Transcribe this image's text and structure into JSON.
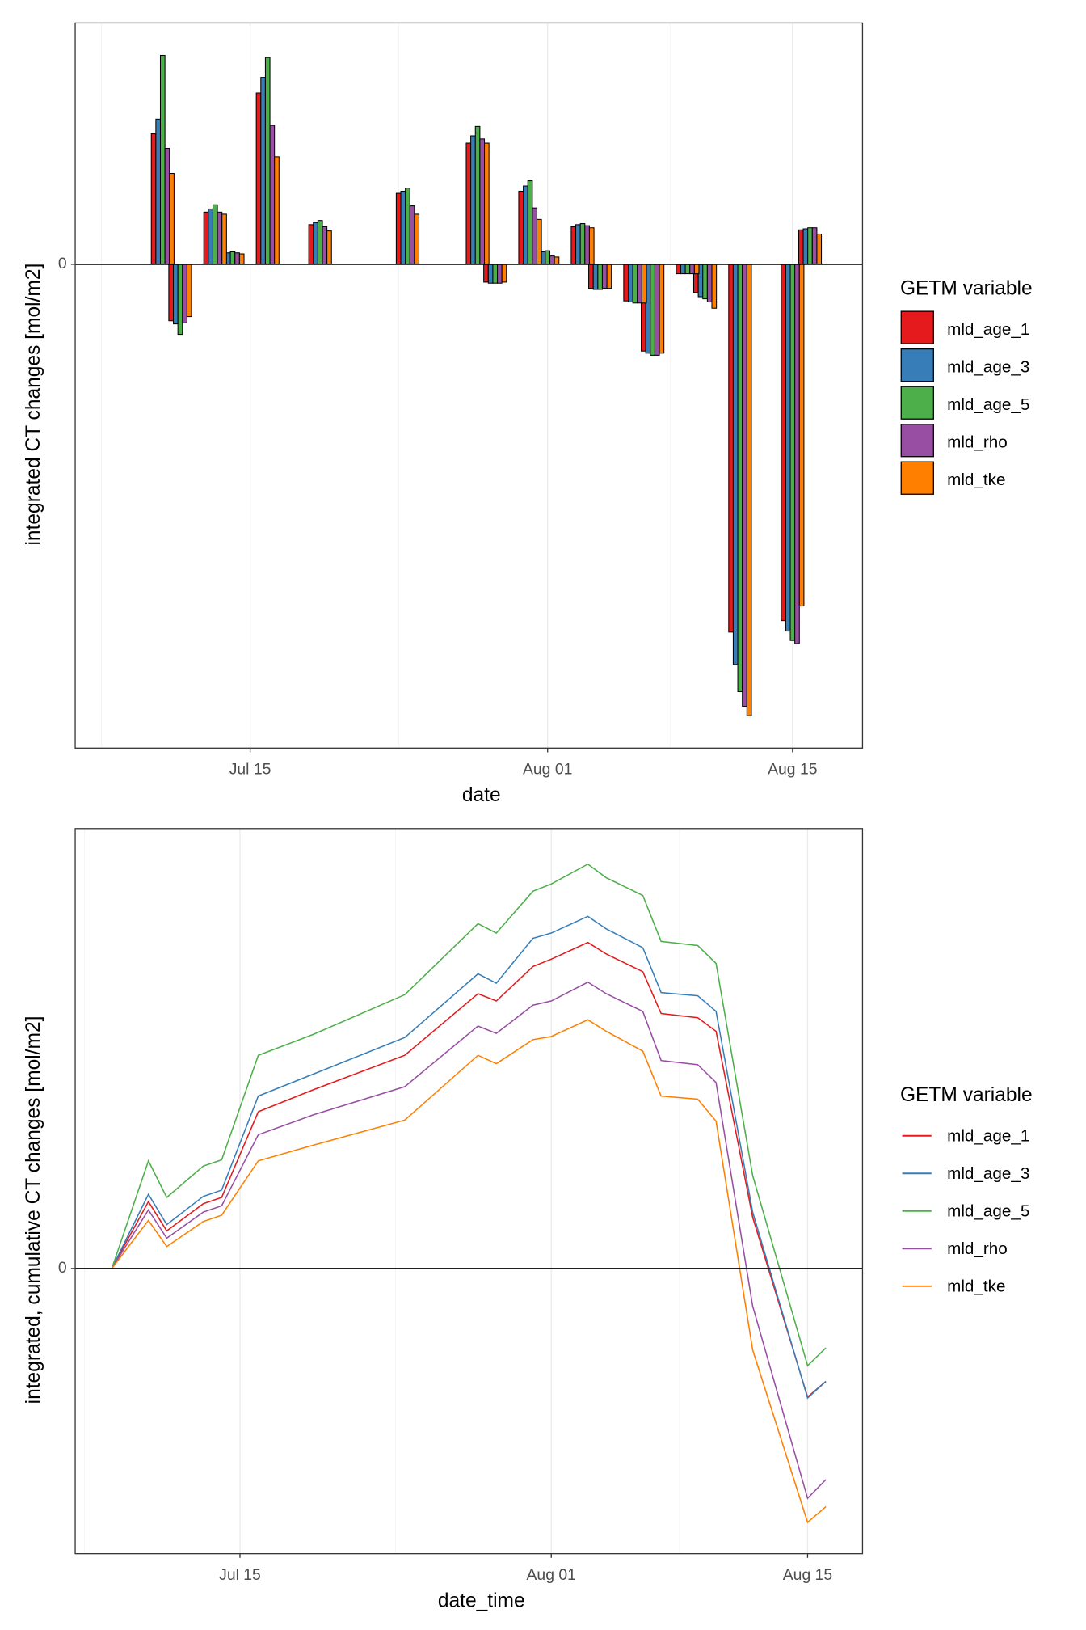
{
  "chart_data": [
    {
      "type": "bar",
      "xlabel": "date",
      "ylabel": "integrated CT changes [mol/m2]",
      "legend_title": "GETM variable",
      "legend": "right",
      "grid": true,
      "zero_line": true,
      "x": [
        "Jul 10",
        "Jul 11",
        "Jul 13",
        "Jul 14",
        "Jul 16",
        "Jul 19",
        "Jul 24",
        "Jul 28",
        "Jul 29",
        "Jul 31",
        "Aug 01",
        "Aug 03",
        "Aug 04",
        "Aug 06",
        "Aug 07",
        "Aug 09",
        "Aug 10",
        "Aug 12",
        "Aug 15",
        "Aug 16"
      ],
      "xlim": [
        "Jul 05",
        "Aug 19"
      ],
      "xticks": [
        "Jul 15",
        "Aug 01",
        "Aug 15"
      ],
      "ylim": [
        -4.63,
        2.31
      ],
      "yticks": [
        0
      ],
      "series": [
        {
          "name": "mld_age_1",
          "color": "#e41a1c",
          "values": [
            1.25,
            -0.54,
            0.5,
            0.11,
            1.64,
            0.38,
            0.68,
            1.16,
            -0.17,
            0.7,
            0.11,
            0.36,
            -0.23,
            -0.35,
            -0.83,
            -0.09,
            -0.27,
            -3.52,
            -3.41,
            0.33
          ]
        },
        {
          "name": "mld_age_3",
          "color": "#377eb8",
          "values": [
            1.39,
            -0.57,
            0.53,
            0.11,
            1.79,
            0.4,
            0.7,
            1.23,
            -0.18,
            0.75,
            0.12,
            0.38,
            -0.24,
            -0.36,
            -0.85,
            -0.09,
            -0.31,
            -3.83,
            -3.51,
            0.34
          ]
        },
        {
          "name": "mld_age_5",
          "color": "#4daf4a",
          "values": [
            2.0,
            -0.67,
            0.57,
            0.12,
            1.98,
            0.42,
            0.73,
            1.32,
            -0.18,
            0.8,
            0.13,
            0.39,
            -0.24,
            -0.37,
            -0.87,
            -0.09,
            -0.33,
            -4.09,
            -3.6,
            0.35
          ]
        },
        {
          "name": "mld_rho",
          "color": "#984ea3",
          "values": [
            1.11,
            -0.56,
            0.5,
            0.11,
            1.33,
            0.36,
            0.56,
            1.2,
            -0.18,
            0.54,
            0.08,
            0.37,
            -0.23,
            -0.37,
            -0.87,
            -0.09,
            -0.36,
            -4.23,
            -3.63,
            0.35
          ]
        },
        {
          "name": "mld_tke",
          "color": "#ff7f00",
          "values": [
            0.87,
            -0.5,
            0.48,
            0.1,
            1.03,
            0.32,
            0.48,
            1.16,
            -0.17,
            0.43,
            0.07,
            0.35,
            -0.23,
            -0.37,
            -0.85,
            -0.09,
            -0.42,
            -4.32,
            -3.27,
            0.29
          ]
        }
      ]
    },
    {
      "type": "line",
      "xlabel": "date_time",
      "ylabel": "integrated, cumulative CT changes [mol/m2]",
      "legend_title": "GETM variable",
      "legend": "right",
      "grid": true,
      "zero_line": true,
      "x": [
        "Jul 08",
        "Jul 10",
        "Jul 11",
        "Jul 13",
        "Jul 14",
        "Jul 16",
        "Jul 19",
        "Jul 24",
        "Jul 28",
        "Jul 29",
        "Jul 31",
        "Aug 01",
        "Aug 03",
        "Aug 04",
        "Aug 06",
        "Aug 07",
        "Aug 09",
        "Aug 10",
        "Aug 12",
        "Aug 15",
        "Aug 16"
      ],
      "xlim": [
        "Jul 06",
        "Aug 18"
      ],
      "xticks": [
        "Jul 15",
        "Aug 01",
        "Aug 15"
      ],
      "ylim": [
        -2.73,
        4.21
      ],
      "yticks": [
        0
      ],
      "series": [
        {
          "name": "mld_age_1",
          "color": "#e41a1c",
          "values": [
            0,
            0.64,
            0.36,
            0.62,
            0.68,
            1.5,
            1.71,
            2.04,
            2.63,
            2.56,
            2.89,
            2.96,
            3.12,
            3.01,
            2.84,
            2.44,
            2.4,
            2.27,
            0.49,
            -1.23,
            -1.08
          ]
        },
        {
          "name": "mld_age_3",
          "color": "#377eb8",
          "values": [
            0,
            0.71,
            0.42,
            0.69,
            0.75,
            1.65,
            1.86,
            2.21,
            2.82,
            2.73,
            3.16,
            3.21,
            3.37,
            3.25,
            3.07,
            2.64,
            2.61,
            2.46,
            0.54,
            -1.24,
            -1.08
          ]
        },
        {
          "name": "mld_age_5",
          "color": "#4daf4a",
          "values": [
            0,
            1.03,
            0.68,
            0.98,
            1.04,
            2.04,
            2.24,
            2.62,
            3.3,
            3.21,
            3.61,
            3.68,
            3.87,
            3.74,
            3.57,
            3.13,
            3.09,
            2.92,
            0.89,
            -0.93,
            -0.76
          ]
        },
        {
          "name": "mld_rho",
          "color": "#984ea3",
          "values": [
            0,
            0.56,
            0.29,
            0.54,
            0.6,
            1.28,
            1.47,
            1.74,
            2.32,
            2.25,
            2.52,
            2.56,
            2.74,
            2.63,
            2.46,
            1.99,
            1.95,
            1.78,
            -0.36,
            -2.2,
            -2.02
          ]
        },
        {
          "name": "mld_tke",
          "color": "#ff7f00",
          "values": [
            0,
            0.46,
            0.21,
            0.45,
            0.51,
            1.03,
            1.18,
            1.42,
            2.04,
            1.96,
            2.19,
            2.22,
            2.38,
            2.27,
            2.08,
            1.65,
            1.62,
            1.41,
            -0.78,
            -2.43,
            -2.28
          ]
        }
      ]
    }
  ]
}
